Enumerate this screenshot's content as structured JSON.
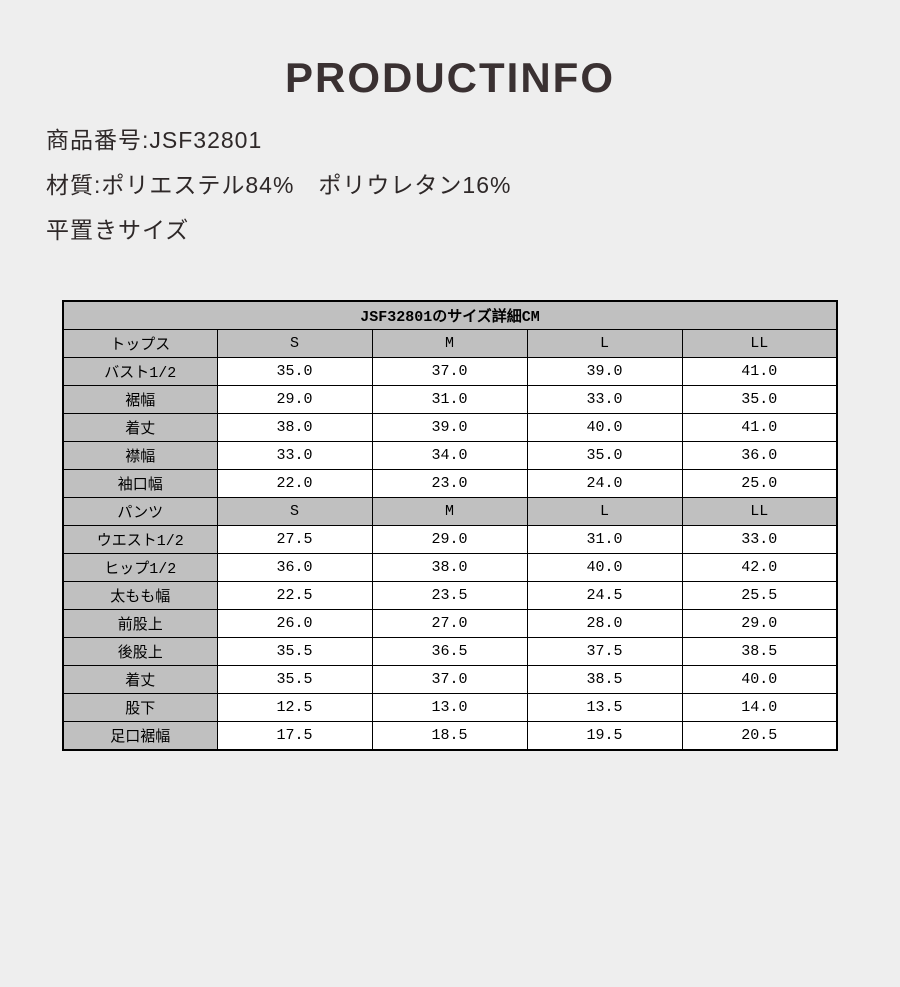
{
  "page": {
    "title": "PRODUCTINFO"
  },
  "info": {
    "product_number_line": "商品番号:JSF32801",
    "material_line": "材質:ポリエステル84%　ポリウレタン16%",
    "flat_size_line": "平置きサイズ"
  },
  "size_table": {
    "title": "JSF32801のサイズ詳細CM",
    "size_columns": [
      "S",
      "M",
      "L",
      "LL"
    ],
    "sections": [
      {
        "name": "トップス",
        "rows": [
          {
            "label": "バスト1/2",
            "values": [
              "35.0",
              "37.0",
              "39.0",
              "41.0"
            ]
          },
          {
            "label": "裾幅",
            "values": [
              "29.0",
              "31.0",
              "33.0",
              "35.0"
            ]
          },
          {
            "label": "着丈",
            "values": [
              "38.0",
              "39.0",
              "40.0",
              "41.0"
            ]
          },
          {
            "label": "襟幅",
            "values": [
              "33.0",
              "34.0",
              "35.0",
              "36.0"
            ]
          },
          {
            "label": "袖口幅",
            "values": [
              "22.0",
              "23.0",
              "24.0",
              "25.0"
            ]
          }
        ]
      },
      {
        "name": "パンツ",
        "rows": [
          {
            "label": "ウエスト1/2",
            "values": [
              "27.5",
              "29.0",
              "31.0",
              "33.0"
            ]
          },
          {
            "label": "ヒップ1/2",
            "values": [
              "36.0",
              "38.0",
              "40.0",
              "42.0"
            ]
          },
          {
            "label": "太もも幅",
            "values": [
              "22.5",
              "23.5",
              "24.5",
              "25.5"
            ]
          },
          {
            "label": "前股上",
            "values": [
              "26.0",
              "27.0",
              "28.0",
              "29.0"
            ]
          },
          {
            "label": "後股上",
            "values": [
              "35.5",
              "36.5",
              "37.5",
              "38.5"
            ]
          },
          {
            "label": "着丈",
            "values": [
              "35.5",
              "37.0",
              "38.5",
              "40.0"
            ]
          },
          {
            "label": "股下",
            "values": [
              "12.5",
              "13.0",
              "13.5",
              "14.0"
            ]
          },
          {
            "label": "足口裾幅",
            "values": [
              "17.5",
              "18.5",
              "19.5",
              "20.5"
            ]
          }
        ]
      }
    ]
  },
  "colors": {
    "page_background": "#eeeeee",
    "table_header_bg": "#c0c0c0",
    "table_border": "#000000",
    "table_cell_bg": "#ffffff",
    "title_text": "#3a3132",
    "body_text": "#2e2828"
  }
}
